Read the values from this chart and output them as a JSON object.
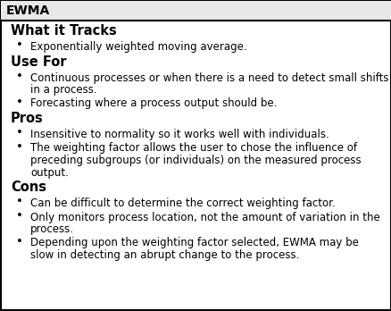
{
  "title": "EWMA",
  "title_fontsize": 10,
  "heading_fontsize": 10.5,
  "body_fontsize": 8.5,
  "bg_color": "#ffffff",
  "border_color": "#000000",
  "text_color": "#000000",
  "header_bg": "#e8e8e8",
  "fig_width": 4.39,
  "fig_height": 3.48,
  "dpi": 100,
  "sections": [
    {
      "heading": "What it Tracks",
      "bullets": [
        [
          "Exponentially weighted moving average."
        ]
      ]
    },
    {
      "heading": "Use For",
      "bullets": [
        [
          "Continuous processes or when there is a need to detect small shifts",
          "in a process."
        ],
        [
          "Forecasting where a process output should be."
        ]
      ]
    },
    {
      "heading": "Pros",
      "bullets": [
        [
          "Insensitive to normality so it works well with individuals."
        ],
        [
          "The weighting factor allows the user to chose the influence of",
          "preceding subgroups (or individuals) on the measured process",
          "output."
        ]
      ]
    },
    {
      "heading": "Cons",
      "bullets": [
        [
          "Can be difficult to determine the correct weighting factor."
        ],
        [
          "Only monitors process location, not the amount of variation in the",
          "process."
        ],
        [
          "Depending upon the weighting factor selected, EWMA may be",
          "slow in detecting an abrupt change to the process."
        ]
      ]
    }
  ]
}
